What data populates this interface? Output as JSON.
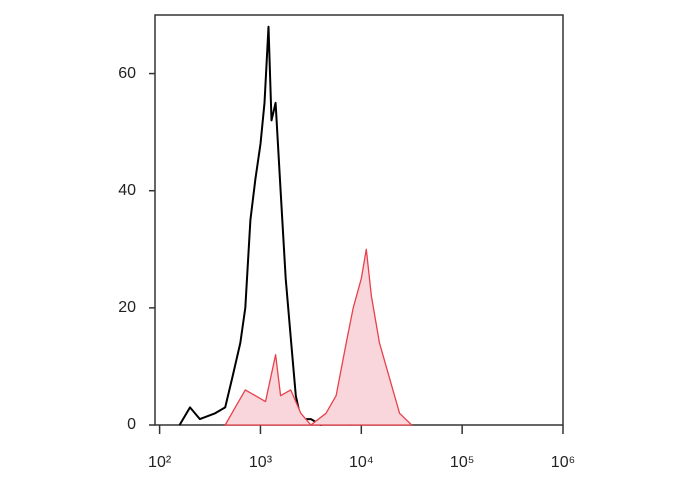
{
  "chart_data": {
    "type": "line",
    "xscale": "log",
    "xlim": [
      90,
      1000000
    ],
    "ylim": [
      0,
      70
    ],
    "xticks": [
      {
        "value": 100,
        "label": "10²"
      },
      {
        "value": 1000,
        "label": "10³"
      },
      {
        "value": 10000,
        "label": "10⁴"
      },
      {
        "value": 100000,
        "label": "10⁵"
      },
      {
        "value": 1000000,
        "label": "10⁶"
      }
    ],
    "yticks": [
      0,
      20,
      40,
      60
    ],
    "series": [
      {
        "color": "#000000",
        "x": [
          158,
          200,
          251,
          355,
          447,
          525,
          631,
          708,
          794,
          891,
          1000,
          1096,
          1202,
          1288,
          1413,
          1585,
          1778,
          1995,
          2239,
          2512,
          3162,
          3981,
          5623,
          7943
        ],
        "values": [
          0,
          3,
          1,
          2,
          3,
          8,
          14,
          20,
          35,
          42,
          48,
          55,
          68,
          52,
          55,
          40,
          25,
          15,
          5,
          1,
          1,
          0,
          1,
          0
        ]
      },
      {
        "color": "#e8404a",
        "fill": "#f9d6dc",
        "x": [
          447,
          562,
          708,
          891,
          1122,
          1413,
          1585,
          1995,
          2512,
          3162,
          4467,
          5623,
          7079,
          8318,
          10000,
          11220,
          12589,
          15136,
          19055,
          23988,
          31623
        ],
        "values": [
          0,
          3,
          6,
          5,
          4,
          12,
          5,
          6,
          2,
          0,
          2,
          5,
          14,
          20,
          25,
          30,
          22,
          14,
          8,
          2,
          0
        ]
      }
    ]
  }
}
